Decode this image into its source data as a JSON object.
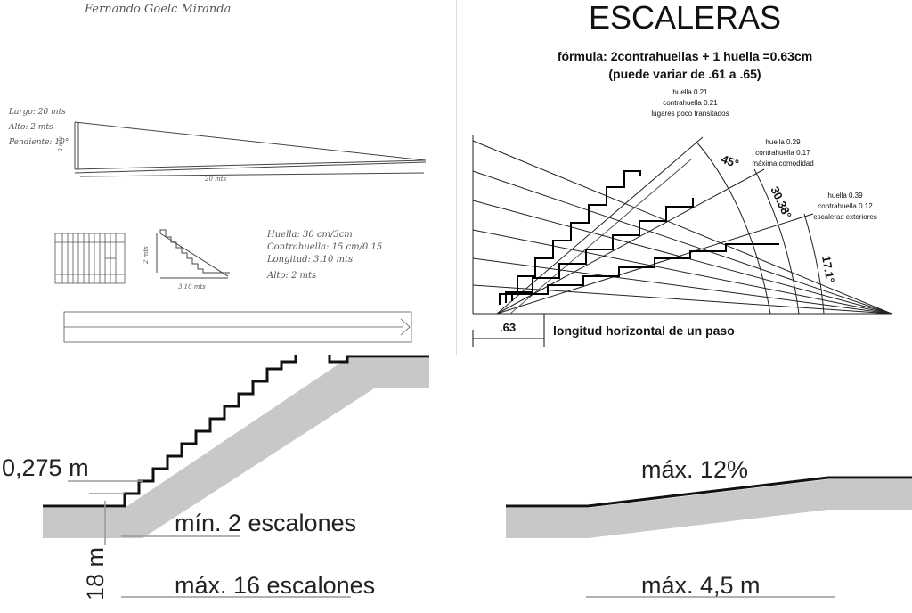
{
  "sketch": {
    "author": "Fernando Goelc Miranda",
    "ramp_notes": [
      "Largo: 20 mts",
      "Alto: 2 mts",
      "Pendiente: 10°"
    ],
    "ramp_height": "2 mts",
    "ramp_length": "20 mts",
    "stair_height": "2 mts",
    "stair_length": "3.10 mts",
    "stair_notes": [
      "Huella: 30 cm/3cm",
      "Contrahuella: 15 cm/0.15",
      "Longitud: 3.10 mts",
      "Alto: 2 mts"
    ]
  },
  "escaleras": {
    "title": "ESCALERAS",
    "formula": "fórmula: 2contrahuellas + 1 huella =0.63cm",
    "range": "(puede variar de .61 a .65)",
    "cases": [
      {
        "huella": "huella 0.21",
        "contrahuella": "contrahuella 0.21",
        "note": "lugares poco transitados",
        "angle": "45°"
      },
      {
        "huella": "huella 0.29",
        "contrahuella": "contrahuella 0.17",
        "note": "máxima comodidad",
        "angle": "30.38°"
      },
      {
        "huella": "huella 0.39",
        "contrahuella": "contrahuella 0.12",
        "note": "escaleras exteriores",
        "angle": "17.1°"
      }
    ],
    "step_dimension": ".63",
    "step_caption": "longitud horizontal de un paso"
  },
  "stair_rule": {
    "riser": "0,275 m",
    "min_steps": "mín. 2 escalones",
    "max_steps": "máx. 16 escalones",
    "tread": "18 m"
  },
  "ramp_rule": {
    "slope": "máx. 12%",
    "length": "máx. 4,5 m"
  }
}
